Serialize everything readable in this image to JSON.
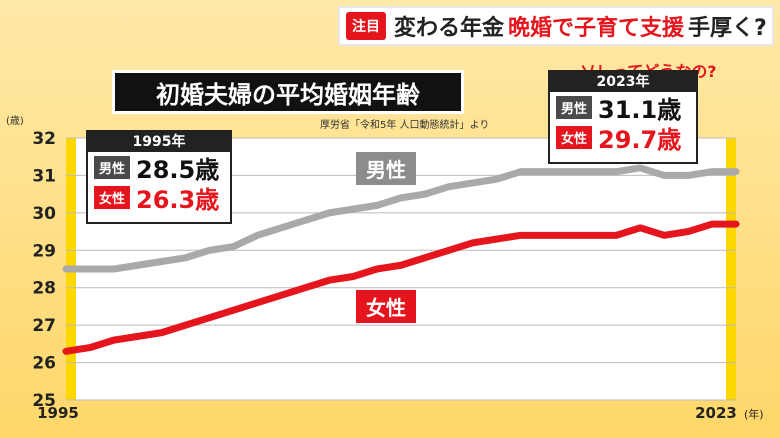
{
  "banner": {
    "tag": "注目",
    "part1": "変わる年金",
    "part2": "晩婚で子育て支援",
    "part3": "手厚く?"
  },
  "title": "初婚夫婦の平均婚姻年齢",
  "source": "厚労省「令和5年 人口動態統計」より",
  "unit_y": "(歳)",
  "callout_1995": {
    "year": "1995年",
    "male_label": "男性",
    "male_value": "28.5歳",
    "female_label": "女性",
    "female_value": "26.3歳"
  },
  "callout_2023": {
    "year": "2023年",
    "male_label": "男性",
    "male_value": "31.1歳",
    "female_label": "女性",
    "female_value": "29.7歳"
  },
  "sore_question": "ソレってどうなの?",
  "series_labels": {
    "male": "男性",
    "female": "女性"
  },
  "colors": {
    "male": "#a9a9a9",
    "female": "#e5151d",
    "accent": "#ffd700"
  },
  "chart_data": {
    "type": "line",
    "title": "初婚夫婦の平均婚姻年齢",
    "ylabel": "(歳)",
    "xlabel": "(年)",
    "x_tick_labels": [
      "1995",
      "2023"
    ],
    "y_ticks": [
      "25",
      "26",
      "27",
      "28",
      "29",
      "30",
      "31",
      "32"
    ],
    "ylim": [
      25,
      32
    ],
    "x": [
      1995,
      1996,
      1997,
      1998,
      1999,
      2000,
      2001,
      2002,
      2003,
      2004,
      2005,
      2006,
      2007,
      2008,
      2009,
      2010,
      2011,
      2012,
      2013,
      2014,
      2015,
      2016,
      2017,
      2018,
      2019,
      2020,
      2021,
      2022,
      2023
    ],
    "series": [
      {
        "name": "男性",
        "values": [
          28.5,
          28.5,
          28.5,
          28.6,
          28.7,
          28.8,
          29.0,
          29.1,
          29.4,
          29.6,
          29.8,
          30.0,
          30.1,
          30.2,
          30.4,
          30.5,
          30.7,
          30.8,
          30.9,
          31.1,
          31.1,
          31.1,
          31.1,
          31.1,
          31.2,
          31.0,
          31.0,
          31.1,
          31.1
        ]
      },
      {
        "name": "女性",
        "values": [
          26.3,
          26.4,
          26.6,
          26.7,
          26.8,
          27.0,
          27.2,
          27.4,
          27.6,
          27.8,
          28.0,
          28.2,
          28.3,
          28.5,
          28.6,
          28.8,
          29.0,
          29.2,
          29.3,
          29.4,
          29.4,
          29.4,
          29.4,
          29.4,
          29.6,
          29.4,
          29.5,
          29.7,
          29.7
        ]
      }
    ]
  }
}
